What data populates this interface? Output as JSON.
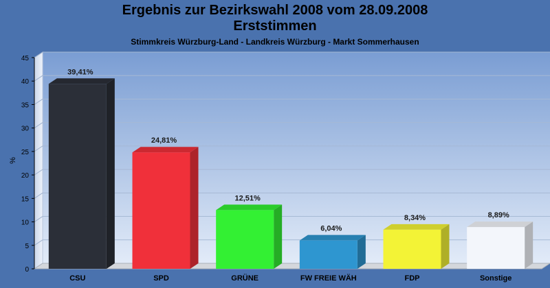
{
  "chart_data": {
    "type": "bar",
    "title": "Ergebnis zur Bezirkswahl 2008 vom 28.09.2008",
    "title_line2": "Erststimmen",
    "subtitle": "Stimmkreis Würzburg-Land - Landkreis Würzburg - Markt Sommerhausen",
    "ylabel": "%",
    "xlabel": "",
    "ylim": [
      0,
      45
    ],
    "yticks": [
      0,
      5,
      10,
      15,
      20,
      25,
      30,
      35,
      40,
      45
    ],
    "grid": true,
    "categories": [
      "CSU",
      "SPD",
      "GRÜNE",
      "FW FREIE WÄH",
      "FDP",
      "Sonstige"
    ],
    "values": [
      39.41,
      24.81,
      12.51,
      6.04,
      8.34,
      8.89
    ],
    "value_labels": [
      "39,41%",
      "24,81%",
      "12,51%",
      "6,04%",
      "8,34%",
      "8,89%"
    ],
    "colors": [
      "#2b2f38",
      "#f0303a",
      "#33f033",
      "#2e96d0",
      "#f3f336",
      "#f3f6fb"
    ]
  }
}
